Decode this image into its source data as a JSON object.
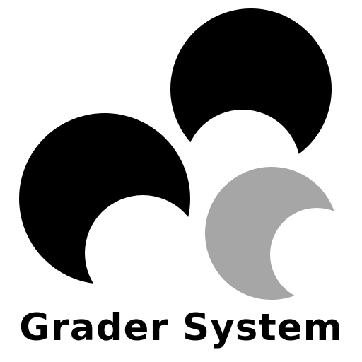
{
  "logo": {
    "name": "Grader System",
    "colors": {
      "primary": "#000000",
      "secondary": "#a6a6a6",
      "background": "#ffffff"
    }
  }
}
